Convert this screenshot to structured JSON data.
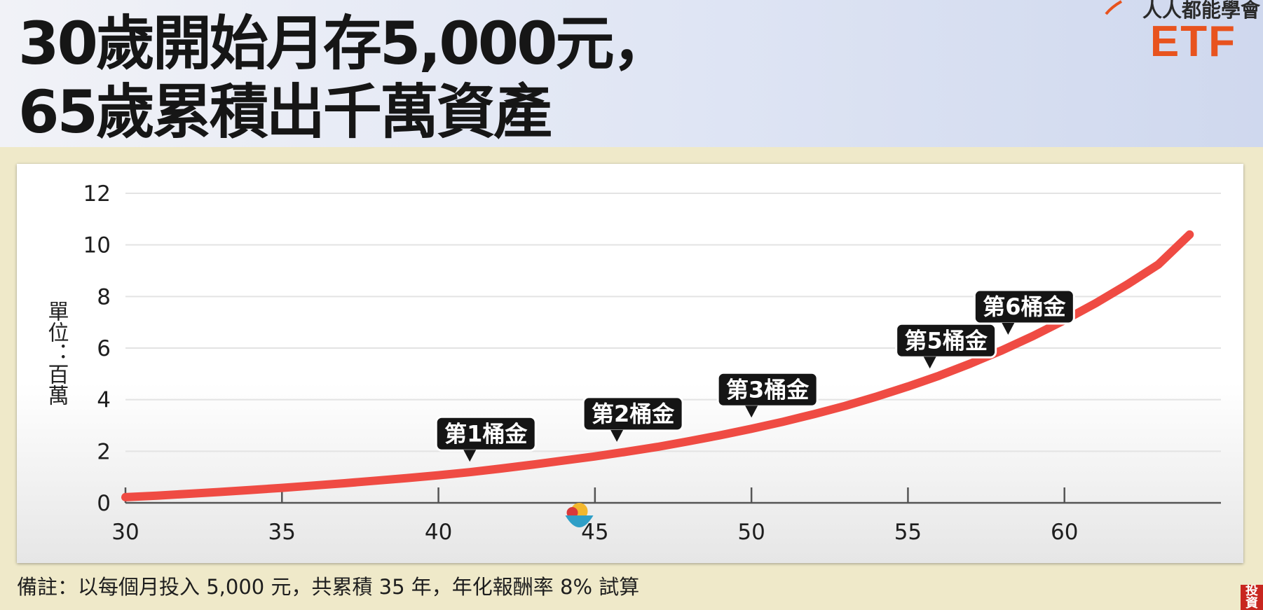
{
  "title": {
    "line1": "30歲開始月存5,000元，",
    "line2": "65歲累積出千萬資產"
  },
  "brand": {
    "tagline": "人人都能學會",
    "name": "ETF",
    "accent_color": "#e8531e"
  },
  "chart_data": {
    "type": "line",
    "title": "",
    "xlabel": "",
    "ylabel": "單位：百萬",
    "xlim": [
      30,
      65
    ],
    "ylim": [
      0,
      12
    ],
    "x_ticks": [
      30,
      35,
      40,
      45,
      50,
      55,
      60
    ],
    "y_ticks": [
      0,
      2,
      4,
      6,
      8,
      10,
      12
    ],
    "grid": true,
    "monthly_contribution": 5000,
    "annual_return": 0.08,
    "series": [
      {
        "color": "#ef4b43",
        "x": [
          30,
          31,
          32,
          33,
          34,
          35,
          36,
          37,
          38,
          39,
          40,
          41,
          42,
          43,
          44,
          45,
          46,
          47,
          48,
          49,
          50,
          51,
          52,
          53,
          54,
          55,
          56,
          57,
          58,
          59,
          60,
          61,
          62,
          63,
          64
        ],
        "values": [
          0.22,
          0.28,
          0.35,
          0.42,
          0.5,
          0.58,
          0.67,
          0.76,
          0.86,
          0.96,
          1.07,
          1.19,
          1.33,
          1.48,
          1.64,
          1.8,
          1.98,
          2.17,
          2.39,
          2.62,
          2.87,
          3.14,
          3.44,
          3.76,
          4.12,
          4.51,
          4.93,
          5.4,
          5.91,
          6.47,
          7.08,
          7.74,
          8.46,
          9.24,
          10.4
        ]
      }
    ],
    "annotations": [
      {
        "label": "第1桶金",
        "x": 41.0,
        "y": 1.16
      },
      {
        "label": "第2桶金",
        "x": 45.7,
        "y": 1.93
      },
      {
        "label": "第3桶金",
        "x": 50.0,
        "y": 2.87
      },
      {
        "label": "第5桶金",
        "x": 55.7,
        "y": 4.77
      },
      {
        "label": "第6桶金",
        "x": 58.2,
        "y": 6.08
      }
    ]
  },
  "footnote": "備註：以每個月投入 5,000 元，共累積 35 年，年化報酬率 8% 試算",
  "corner_badge": "投資"
}
